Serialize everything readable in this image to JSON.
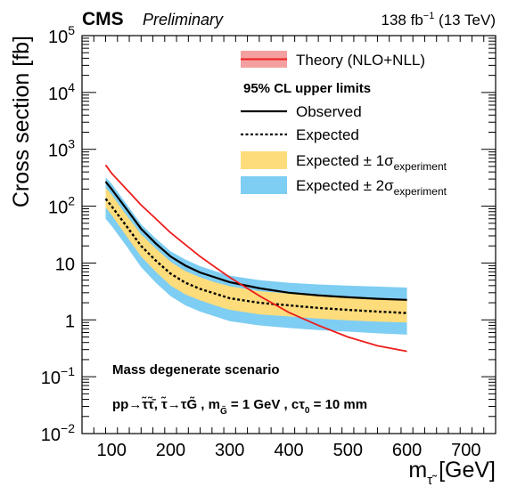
{
  "header": {
    "experiment": "CMS",
    "status": "Preliminary",
    "lumi_value": "138 fb",
    "lumi_exp": "−1",
    "lumi_energy": " (13 TeV)"
  },
  "legend": {
    "theory": "Theory (NLO+NLL)",
    "limits_heading": "95% CL upper limits",
    "observed": "Observed",
    "expected": "Expected",
    "band1_main": "Expected ± 1σ",
    "band2_main": "Expected ± 2σ",
    "band_sub": "experiment"
  },
  "annotation": {
    "line1": "Mass degenerate scenario",
    "line2_a": "pp→τ̃τ̃̄",
    "line2_b": ",  τ̃→τG̃ , m",
    "line2_sub": "G̃",
    "line2_c": " = 1 GeV , cτ",
    "line2_sub2": "0",
    "line2_d": " = 10 mm"
  },
  "axes": {
    "ylabel": "Cross section [fb]",
    "xlabel_main": "m",
    "xlabel_sub": "τ̃",
    "xlabel_unit": " [GeV]"
  },
  "colors": {
    "theory": "#ee1c1c",
    "theory_band": "#f4a0a0",
    "band1": "#fddc7c",
    "band2": "#7ecdf3",
    "observed": "#000000",
    "expected": "#000000"
  },
  "chart_data": {
    "type": "line",
    "xlim": [
      50,
      750
    ],
    "ylim": [
      0.01,
      100000
    ],
    "yscale": "log",
    "xticks": [
      100,
      200,
      300,
      400,
      500,
      600,
      700
    ],
    "yticks": [
      {
        "value": 0.01,
        "base": "10",
        "exp": "−2"
      },
      {
        "value": 0.1,
        "base": "10",
        "exp": "−1"
      },
      {
        "value": 1,
        "base": "1",
        "exp": ""
      },
      {
        "value": 10,
        "base": "10",
        "exp": ""
      },
      {
        "value": 100,
        "base": "10",
        "exp": "2"
      },
      {
        "value": 1000,
        "base": "10",
        "exp": "3"
      },
      {
        "value": 10000,
        "base": "10",
        "exp": "4"
      },
      {
        "value": 100000,
        "base": "10",
        "exp": "5"
      }
    ],
    "x": [
      90,
      100,
      125,
      150,
      175,
      200,
      225,
      250,
      275,
      300,
      350,
      400,
      450,
      500,
      550,
      600
    ],
    "series": [
      {
        "name": "Theory (NLO+NLL)",
        "values": [
          530,
          380,
          200,
          105,
          60,
          34,
          21,
          13,
          8.5,
          5.6,
          2.65,
          1.35,
          0.8,
          0.5,
          0.35,
          0.28
        ]
      },
      {
        "name": "Observed",
        "values": [
          270,
          200,
          90,
          40,
          22,
          13,
          9,
          6.8,
          5.6,
          4.6,
          3.6,
          3.0,
          2.7,
          2.5,
          2.35,
          2.25
        ]
      },
      {
        "name": "Expected",
        "values": [
          135,
          100,
          45,
          20,
          11,
          6.5,
          4.5,
          3.5,
          2.9,
          2.4,
          2.0,
          1.8,
          1.62,
          1.5,
          1.4,
          1.32
        ]
      }
    ],
    "bands": [
      {
        "name": "Expected ± 1σ experiment",
        "low": [
          95,
          70,
          30,
          13,
          7,
          4.0,
          2.8,
          2.2,
          1.8,
          1.5,
          1.25,
          1.15,
          1.05,
          0.98,
          0.93,
          0.9
        ],
        "high": [
          210,
          160,
          70,
          32,
          18,
          10.5,
          7.2,
          5.6,
          4.6,
          3.9,
          3.2,
          2.9,
          2.65,
          2.45,
          2.3,
          2.2
        ]
      },
      {
        "name": "Expected ± 2σ experiment",
        "low": [
          60,
          45,
          20,
          8.5,
          4.5,
          2.6,
          1.8,
          1.4,
          1.15,
          0.95,
          0.8,
          0.72,
          0.66,
          0.62,
          0.58,
          0.55
        ],
        "high": [
          320,
          250,
          110,
          48,
          27,
          16,
          11.5,
          8.8,
          7.2,
          6.0,
          5.0,
          4.5,
          4.2,
          4.0,
          3.85,
          3.7
        ]
      }
    ]
  }
}
